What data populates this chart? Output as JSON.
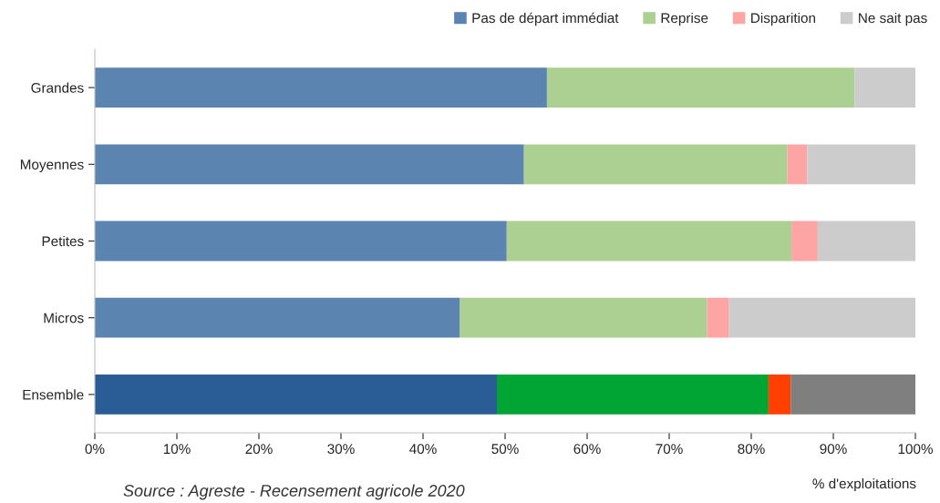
{
  "chart_data": {
    "type": "bar",
    "orientation": "horizontal",
    "stacked": true,
    "categories": [
      "Grandes",
      "Moyennes",
      "Petites",
      "Micros",
      "Ensemble"
    ],
    "series": [
      {
        "name": "Pas de départ immédiat",
        "color": "#5b84b1",
        "colors": [
          "#5b84b1",
          "#5b84b1",
          "#5b84b1",
          "#5b84b1",
          "#2a5c96"
        ],
        "values": [
          55.1,
          52.3,
          50.2,
          44.5,
          49.0
        ]
      },
      {
        "name": "Reprise",
        "color": "#acd091",
        "colors": [
          "#acd091",
          "#acd091",
          "#acd091",
          "#acd091",
          "#00a533"
        ],
        "values": [
          37.5,
          32.1,
          34.7,
          30.1,
          33.1
        ]
      },
      {
        "name": "Disparition",
        "color": "#fda5a5",
        "colors": [
          "#fda5a5",
          "#fda5a5",
          "#fda5a5",
          "#fda5a5",
          "#ff4000"
        ],
        "values": [
          null,
          2.4,
          3.2,
          2.7,
          2.7
        ]
      },
      {
        "name": "Ne sait pas",
        "color": "#cccccc",
        "colors": [
          "#cccccc",
          "#cccccc",
          "#cccccc",
          "#cccccc",
          "#7f7f7f"
        ],
        "values": [
          7.4,
          13.2,
          11.9,
          22.7,
          15.2
        ]
      }
    ],
    "xlim": [
      0,
      100
    ],
    "xticks": [
      {
        "value": 0,
        "label": "0%"
      },
      {
        "value": 10,
        "label": "10%"
      },
      {
        "value": 20,
        "label": "20%"
      },
      {
        "value": 30,
        "label": "30%"
      },
      {
        "value": 40,
        "label": "40%"
      },
      {
        "value": 50,
        "label": "50%"
      },
      {
        "value": 60,
        "label": "60%"
      },
      {
        "value": 70,
        "label": "70%"
      },
      {
        "value": 80,
        "label": "80%"
      },
      {
        "value": 90,
        "label": "90%"
      },
      {
        "value": 100,
        "label": "100%"
      }
    ],
    "xlabel": "% d'exploitations",
    "annotations": [
      "Source : Agreste - Recensement agricole 2020"
    ],
    "legend": "top right",
    "grid": false
  }
}
